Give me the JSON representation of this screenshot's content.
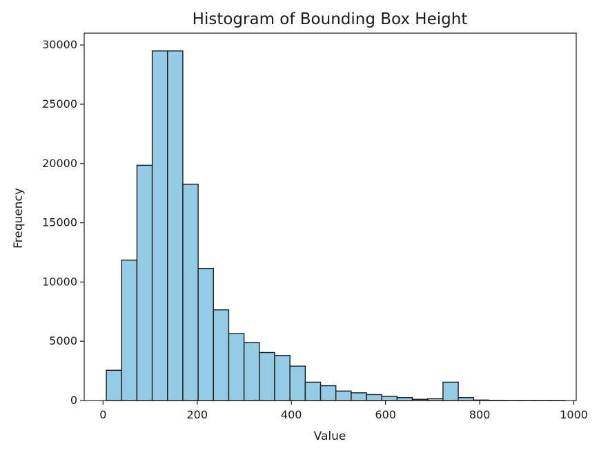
{
  "chart_data": {
    "type": "bar",
    "title": "Histogram of Bounding Box Height",
    "xlabel": "Value",
    "ylabel": "Frequency",
    "bar_color": "#94cbe5",
    "edge_color": "#1a1a1a",
    "xlim": [
      -40,
      1005
    ],
    "ylim": [
      0,
      31000
    ],
    "xticks": [
      0,
      200,
      400,
      600,
      800,
      1000
    ],
    "yticks": [
      0,
      5000,
      10000,
      15000,
      20000,
      25000,
      30000
    ],
    "bin_edges": [
      7,
      39.5,
      72,
      104.5,
      137,
      169.5,
      202,
      234.5,
      267,
      299.5,
      332,
      364.5,
      397,
      429.5,
      462,
      494.5,
      527,
      559.5,
      592,
      624.5,
      657,
      689.5,
      722,
      754.5,
      787,
      819.5,
      852,
      884.5,
      917,
      949.5,
      982
    ],
    "values": [
      2550,
      11850,
      19850,
      29500,
      29500,
      18250,
      11150,
      7650,
      5650,
      4900,
      4050,
      3800,
      2900,
      1550,
      1250,
      800,
      650,
      500,
      350,
      250,
      100,
      150,
      1550,
      250,
      40,
      20,
      10,
      10,
      10,
      10
    ],
    "grid": false,
    "legend": "none"
  }
}
